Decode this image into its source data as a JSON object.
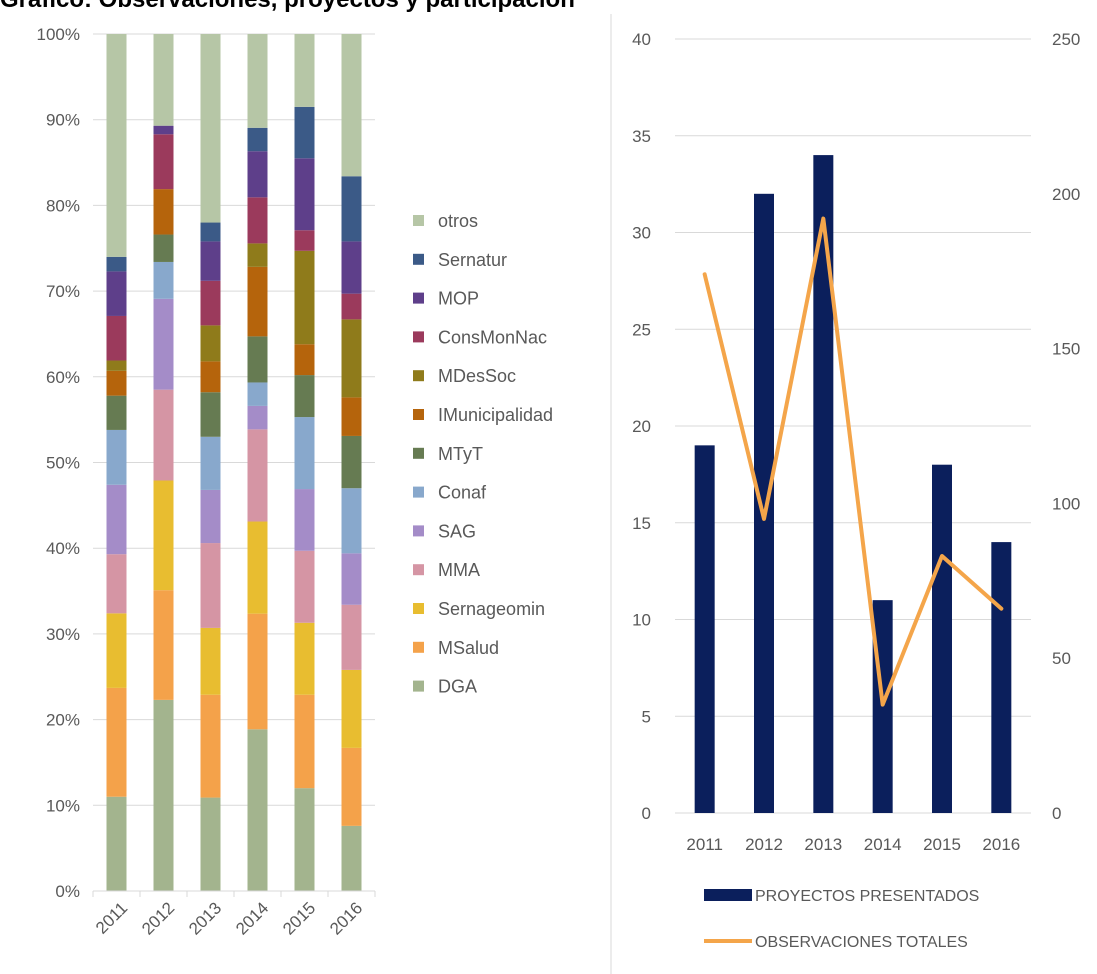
{
  "header": {
    "title_fragment": "Gráfico: Observaciones, proyectos y participación"
  },
  "chart_data": [
    {
      "type": "bar",
      "stacked": "percent",
      "categories": [
        "2011",
        "2012",
        "2013",
        "2014",
        "2015",
        "2016"
      ],
      "y_ticks": [
        "0%",
        "10%",
        "20%",
        "30%",
        "40%",
        "50%",
        "60%",
        "70%",
        "80%",
        "90%",
        "100%"
      ],
      "ylim": [
        0,
        100
      ],
      "legend_position": "right",
      "series": [
        {
          "name": "DGA",
          "color": "#a3b48e",
          "values": [
            11.0,
            22.3,
            10.9,
            20.0,
            12.0,
            7.6
          ]
        },
        {
          "name": "MSalud",
          "color": "#f4a24a",
          "values": [
            12.7,
            12.8,
            12.0,
            14.3,
            10.9,
            9.1
          ]
        },
        {
          "name": "Sernageomin",
          "color": "#e8bd30",
          "values": [
            8.7,
            12.8,
            7.8,
            11.4,
            8.4,
            9.1
          ]
        },
        {
          "name": "MMA",
          "color": "#d595a4",
          "values": [
            6.9,
            10.6,
            9.9,
            11.4,
            8.4,
            7.6
          ]
        },
        {
          "name": "SAG",
          "color": "#a48cc8",
          "values": [
            8.1,
            10.6,
            6.2,
            2.9,
            7.2,
            6.0
          ]
        },
        {
          "name": "Conaf",
          "color": "#88a8cc",
          "values": [
            6.4,
            4.3,
            6.2,
            2.9,
            8.4,
            7.6
          ]
        },
        {
          "name": "MTyT",
          "color": "#667b52",
          "values": [
            4.0,
            3.2,
            5.2,
            5.7,
            4.9,
            6.1
          ]
        },
        {
          "name": "IMunicipalidad",
          "color": "#b5640c",
          "values": [
            2.9,
            5.3,
            3.6,
            8.6,
            3.6,
            4.5
          ]
        },
        {
          "name": "MDesSoc",
          "color": "#8f7b1b",
          "values": [
            1.2,
            0.0,
            4.2,
            2.9,
            10.9,
            9.1
          ]
        },
        {
          "name": "ConsMonNac",
          "color": "#9b3a5c",
          "values": [
            5.2,
            6.4,
            5.2,
            5.7,
            2.4,
            3.0
          ]
        },
        {
          "name": "MOP",
          "color": "#5e3f8a",
          "values": [
            5.2,
            1.0,
            4.6,
            5.7,
            8.4,
            6.1
          ]
        },
        {
          "name": "Sernatur",
          "color": "#3b5a87",
          "values": [
            1.7,
            0.0,
            2.2,
            2.9,
            6.0,
            7.6
          ]
        },
        {
          "name": "otros",
          "color": "#b6c6a6",
          "values": [
            26.0,
            10.7,
            22.0,
            11.6,
            8.5,
            16.6
          ]
        }
      ]
    },
    {
      "type": "bar",
      "categories": [
        "2011",
        "2012",
        "2013",
        "2014",
        "2015",
        "2016"
      ],
      "y_ticks": [
        "0",
        "5",
        "10",
        "15",
        "20",
        "25",
        "30",
        "35",
        "40"
      ],
      "ylim": [
        0,
        40
      ],
      "y2_ticks": [
        "0",
        "50",
        "100",
        "150",
        "200",
        "250"
      ],
      "y2lim": [
        0,
        250
      ],
      "legend_position": "bottom",
      "series": [
        {
          "name": "PROYECTOS PRESENTADOS",
          "kind": "bar",
          "axis": "left",
          "color": "#0b1f5c",
          "values": [
            19,
            32,
            34,
            11,
            18,
            14
          ]
        },
        {
          "name": "OBSERVACIONES TOTALES",
          "kind": "line",
          "axis": "right",
          "color": "#f4a54a",
          "values": [
            174,
            95,
            192,
            35,
            83,
            66
          ]
        }
      ]
    }
  ]
}
